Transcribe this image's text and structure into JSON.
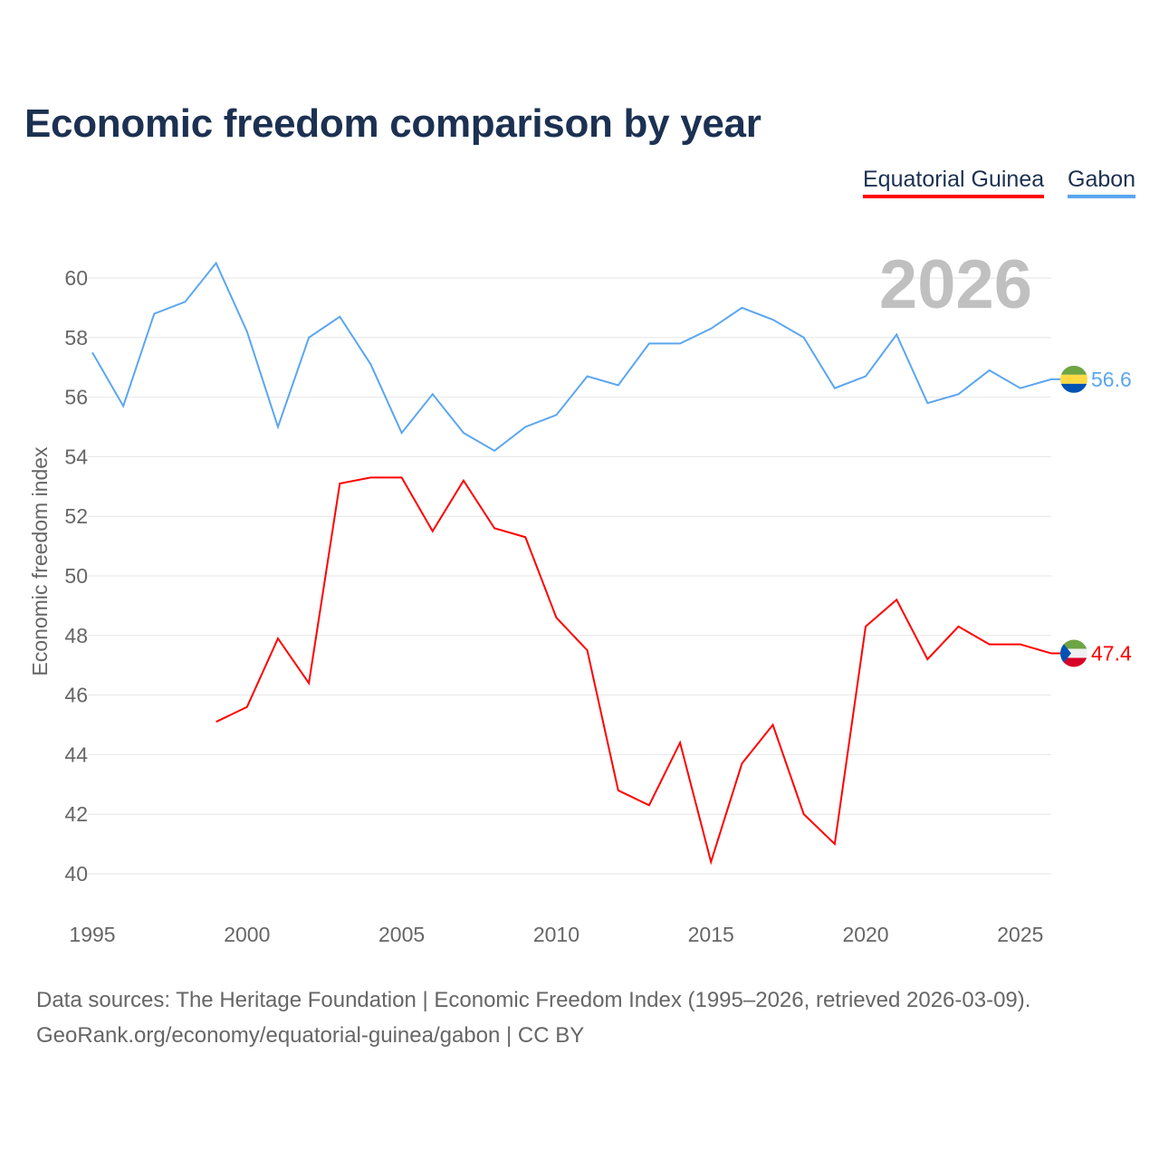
{
  "chart_data": {
    "type": "line",
    "title": "Economic freedom comparison by year",
    "ylabel": "Economic freedom index",
    "xlabel": "",
    "xlim": [
      1995,
      2026
    ],
    "ylim": [
      40,
      60
    ],
    "xticks": [
      "1995",
      "2000",
      "2005",
      "2010",
      "2015",
      "2020",
      "2025"
    ],
    "yticks": [
      "40",
      "42",
      "44",
      "46",
      "48",
      "50",
      "52",
      "54",
      "56",
      "58",
      "60"
    ],
    "year_watermark": "2026",
    "grid": true,
    "legend_placement": "top-right",
    "series": [
      {
        "name": "Equatorial Guinea",
        "color": "#ff0000",
        "end_label": "47.4",
        "x": [
          1999,
          2000,
          2001,
          2002,
          2003,
          2004,
          2005,
          2006,
          2007,
          2008,
          2009,
          2010,
          2011,
          2012,
          2013,
          2014,
          2015,
          2016,
          2017,
          2018,
          2019,
          2020,
          2021,
          2022,
          2023,
          2024,
          2025,
          2026
        ],
        "values": [
          45.1,
          45.6,
          47.9,
          46.4,
          53.1,
          53.3,
          53.3,
          51.5,
          53.2,
          51.6,
          51.3,
          48.6,
          47.5,
          42.8,
          42.3,
          44.4,
          40.4,
          43.7,
          45.0,
          42.0,
          41.0,
          48.3,
          49.2,
          47.2,
          48.3,
          47.7,
          47.7,
          47.4
        ]
      },
      {
        "name": "Gabon",
        "color": "#5ba6f0",
        "end_label": "56.6",
        "x": [
          1995,
          1996,
          1997,
          1998,
          1999,
          2000,
          2001,
          2002,
          2003,
          2004,
          2005,
          2006,
          2007,
          2008,
          2009,
          2010,
          2011,
          2012,
          2013,
          2014,
          2015,
          2016,
          2017,
          2018,
          2019,
          2020,
          2021,
          2022,
          2023,
          2024,
          2025,
          2026
        ],
        "values": [
          57.5,
          55.7,
          58.8,
          59.2,
          60.5,
          58.2,
          55.0,
          58.0,
          58.7,
          57.1,
          54.8,
          56.1,
          54.8,
          54.2,
          55.0,
          55.4,
          56.7,
          56.4,
          57.8,
          57.8,
          58.3,
          59.0,
          58.6,
          58.0,
          56.3,
          56.7,
          58.1,
          55.8,
          56.1,
          56.9,
          56.3,
          56.6
        ]
      }
    ]
  },
  "footer": {
    "line1": "Data sources: The Heritage Foundation | Economic Freedom Index (1995–2026, retrieved 2026-03-09).",
    "line2": "GeoRank.org/economy/equatorial-guinea/gabon | CC BY"
  }
}
